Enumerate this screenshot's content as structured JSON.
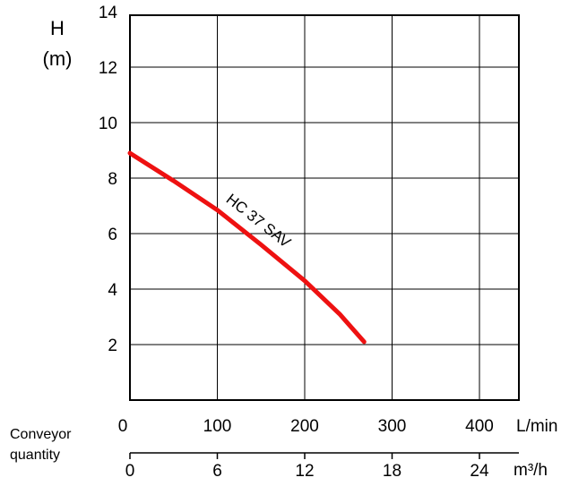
{
  "chart_data": {
    "type": "line",
    "ylabel_top": "H",
    "ylabel_bottom": "(m)",
    "xlabel": "Conveyor quantity",
    "xlabel_line1": "Conveyor",
    "xlabel_line2": "quantity",
    "x_unit": "L/min",
    "x2_unit": "m³/h",
    "xlim": [
      0,
      450
    ],
    "ylim": [
      0,
      14
    ],
    "x_ticks": [
      "0",
      "100",
      "200",
      "300",
      "400"
    ],
    "x2_ticks": [
      "0",
      "6",
      "12",
      "18",
      "24"
    ],
    "y_ticks": [
      "2",
      "4",
      "6",
      "8",
      "10",
      "12",
      "14"
    ],
    "grid": true,
    "series": [
      {
        "name": "HC 37 SAV",
        "color": "#ee1111",
        "x": [
          0,
          50,
          100,
          150,
          200,
          240,
          268
        ],
        "y": [
          8.9,
          7.9,
          6.85,
          5.6,
          4.3,
          3.1,
          2.1
        ]
      }
    ]
  }
}
